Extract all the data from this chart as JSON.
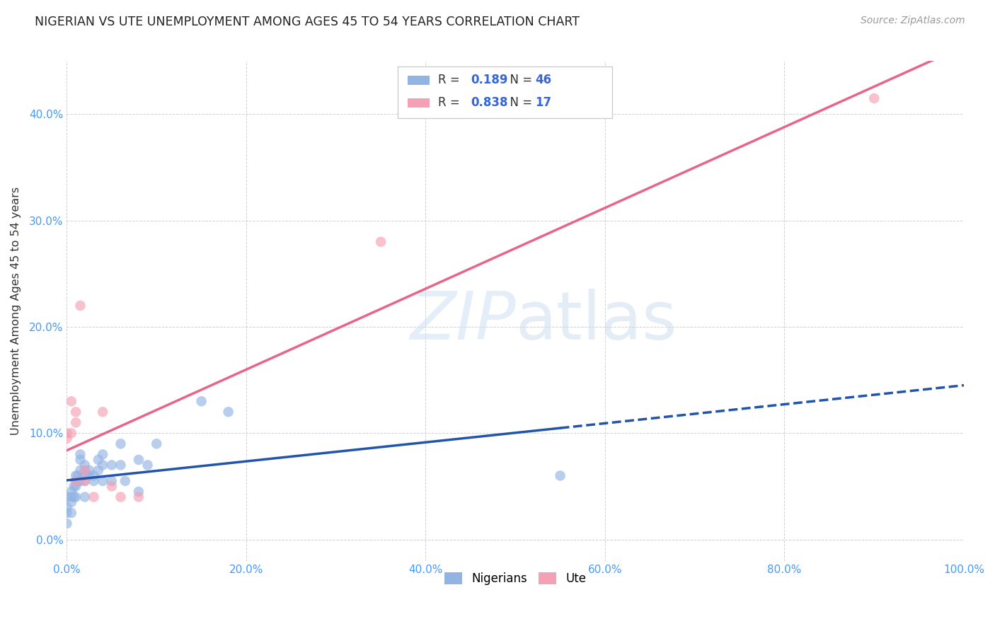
{
  "title": "NIGERIAN VS UTE UNEMPLOYMENT AMONG AGES 45 TO 54 YEARS CORRELATION CHART",
  "source": "Source: ZipAtlas.com",
  "ylabel": "Unemployment Among Ages 45 to 54 years",
  "xlim": [
    0.0,
    100.0
  ],
  "ylim": [
    -2.0,
    45.0
  ],
  "xticks": [
    0.0,
    20.0,
    40.0,
    60.0,
    80.0,
    100.0
  ],
  "xtick_labels": [
    "0.0%",
    "20.0%",
    "40.0%",
    "60.0%",
    "80.0%",
    "100.0%"
  ],
  "ytick_positions": [
    0.0,
    10.0,
    20.0,
    30.0,
    40.0
  ],
  "ytick_labels": [
    "0.0%",
    "10.0%",
    "20.0%",
    "30.0%",
    "40.0%"
  ],
  "background_color": "#ffffff",
  "legend_r_nigerian": "0.189",
  "legend_n_nigerian": "46",
  "legend_r_ute": "0.838",
  "legend_n_ute": "17",
  "nigerian_color": "#92b4e3",
  "ute_color": "#f4a0b5",
  "nigerian_line_color": "#2255aa",
  "ute_line_color": "#e8658a",
  "grid_color": "#cccccc",
  "nigerian_scatter_x": [
    0.0,
    0.0,
    0.0,
    0.0,
    0.5,
    0.5,
    0.5,
    0.5,
    0.8,
    0.8,
    1.0,
    1.0,
    1.0,
    1.0,
    1.2,
    1.2,
    1.5,
    1.5,
    1.5,
    1.5,
    2.0,
    2.0,
    2.0,
    2.0,
    2.0,
    2.5,
    2.5,
    3.0,
    3.0,
    3.5,
    3.5,
    4.0,
    4.0,
    4.0,
    5.0,
    5.0,
    6.0,
    6.0,
    6.5,
    8.0,
    8.0,
    9.0,
    10.0,
    15.0,
    18.0,
    55.0
  ],
  "nigerian_scatter_y": [
    4.0,
    3.0,
    2.5,
    1.5,
    4.5,
    4.0,
    3.5,
    2.5,
    5.0,
    4.0,
    6.0,
    5.5,
    5.0,
    4.0,
    6.0,
    5.5,
    8.0,
    7.5,
    6.5,
    5.5,
    7.0,
    6.5,
    6.0,
    5.5,
    4.0,
    6.5,
    6.0,
    6.0,
    5.5,
    6.5,
    7.5,
    8.0,
    7.0,
    5.5,
    7.0,
    5.5,
    7.0,
    9.0,
    5.5,
    4.5,
    7.5,
    7.0,
    9.0,
    13.0,
    12.0,
    6.0
  ],
  "ute_scatter_x": [
    0.0,
    0.0,
    0.5,
    0.5,
    1.0,
    1.0,
    1.0,
    1.5,
    2.0,
    2.0,
    3.0,
    4.0,
    5.0,
    6.0,
    8.0,
    35.0,
    90.0
  ],
  "ute_scatter_y": [
    10.0,
    9.5,
    10.0,
    13.0,
    12.0,
    11.0,
    5.5,
    22.0,
    6.5,
    5.5,
    4.0,
    12.0,
    5.0,
    4.0,
    4.0,
    28.0,
    41.5
  ]
}
